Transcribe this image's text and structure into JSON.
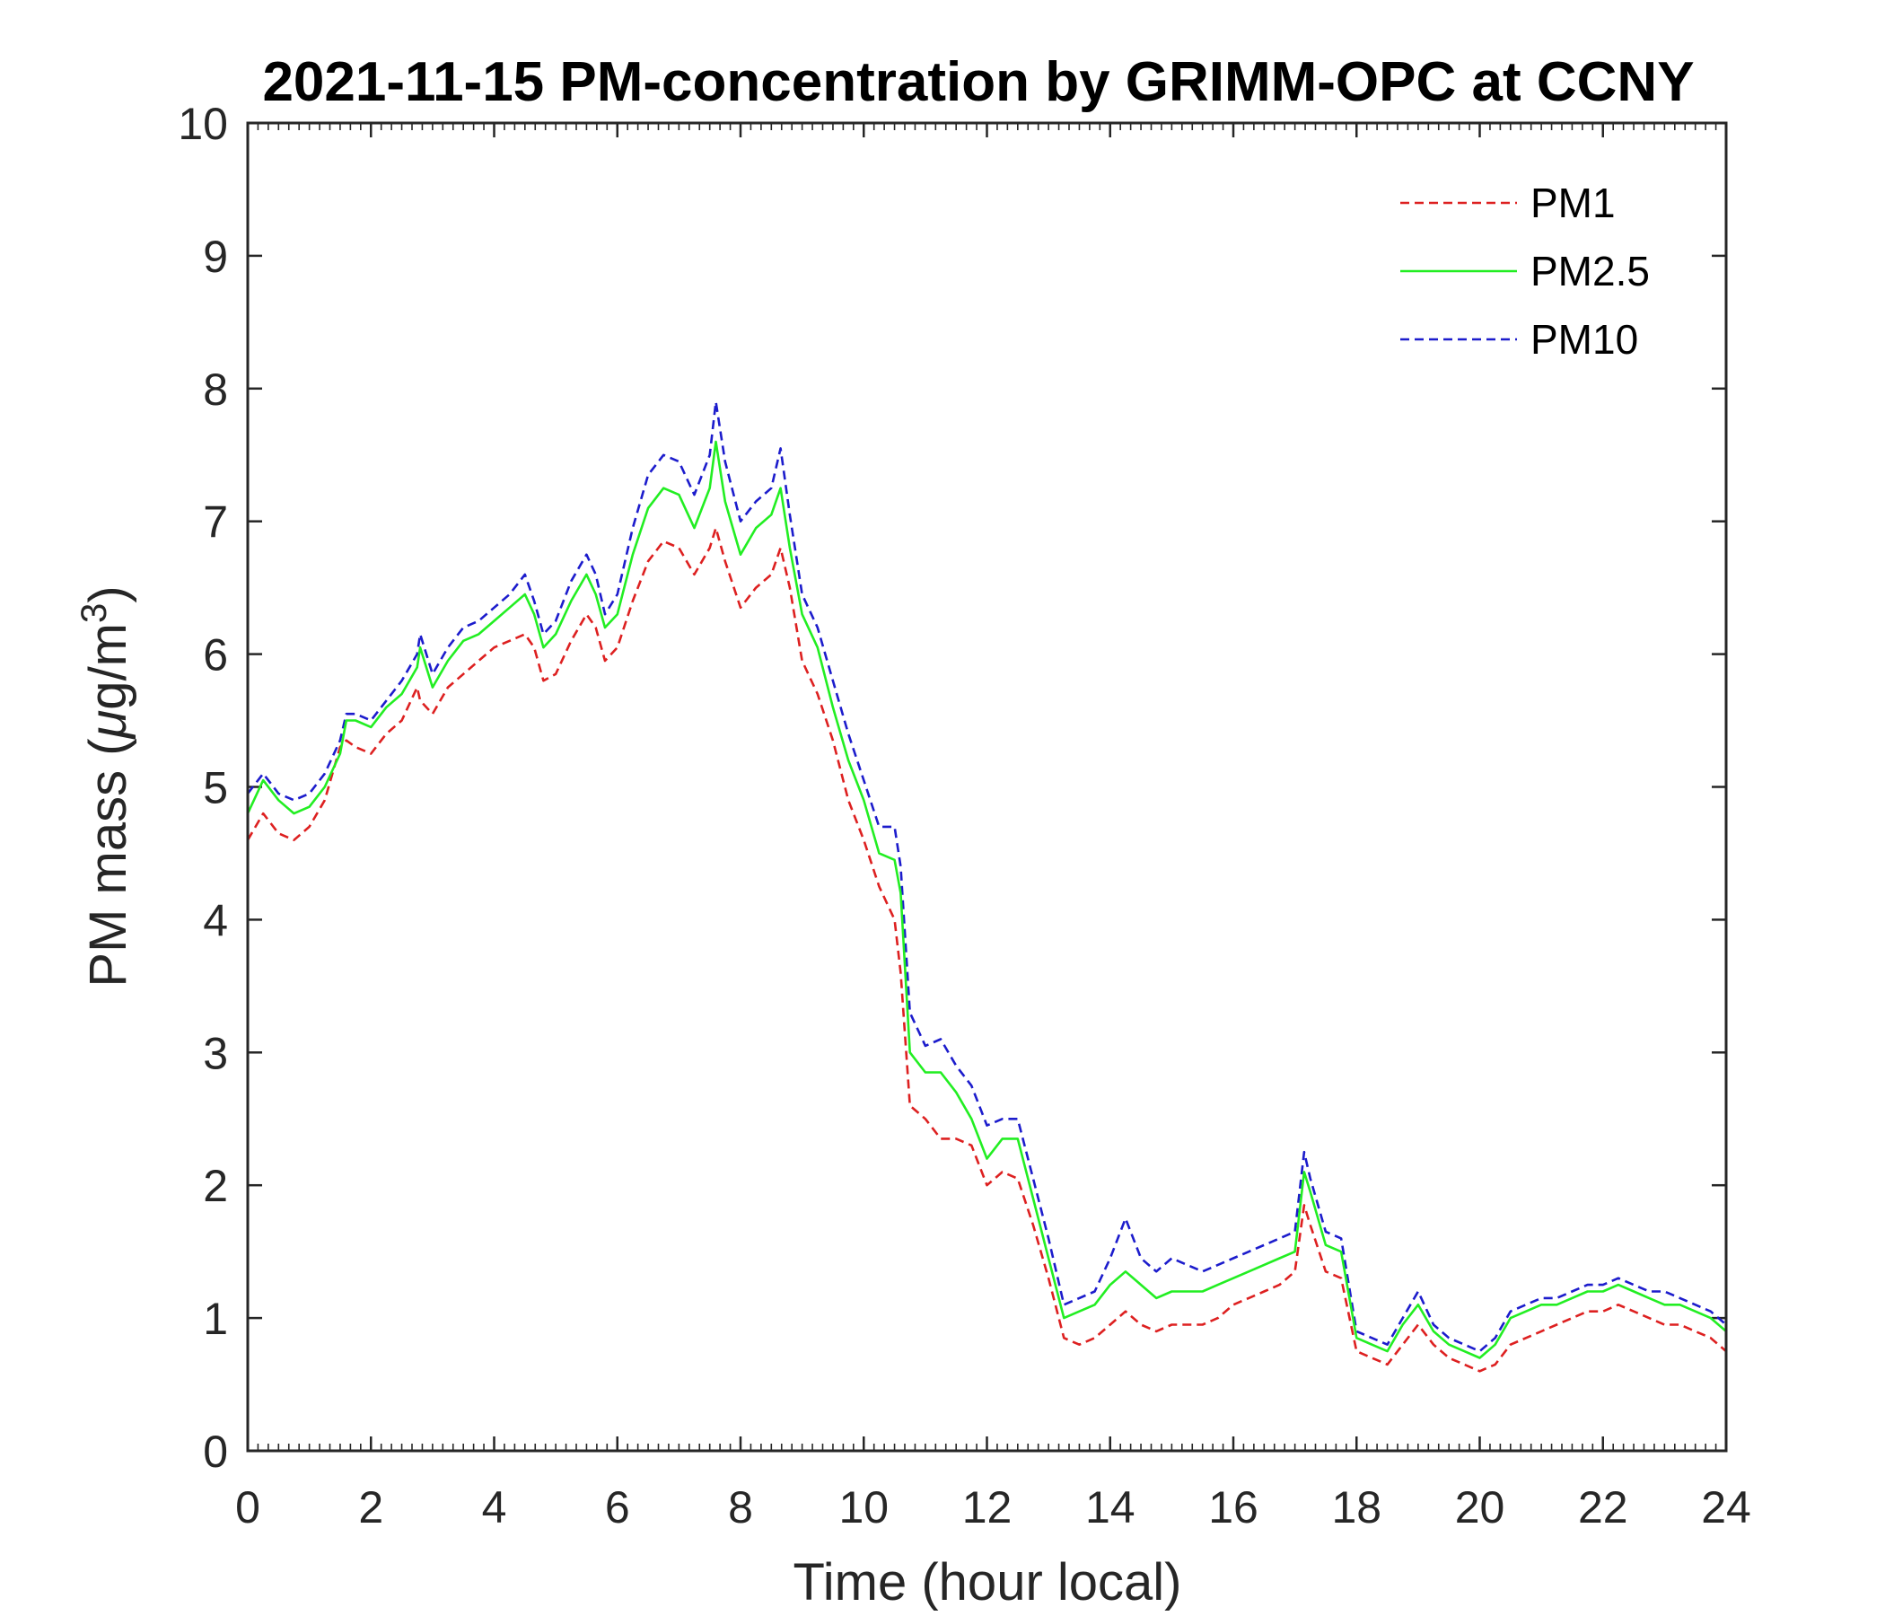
{
  "chart_data": {
    "type": "line",
    "title": "2021-11-15 PM-concentration by GRIMM-OPC at CCNY",
    "xlabel": "Time (hour local)",
    "ylabel": {
      "prefix": "PM mass (",
      "mu": "μ",
      "unit": "g/m",
      "superscript": "3",
      "suffix": ")"
    },
    "xlim": [
      0,
      24
    ],
    "ylim": [
      0,
      10
    ],
    "xticks": [
      0,
      2,
      4,
      6,
      8,
      10,
      12,
      14,
      16,
      18,
      20,
      22,
      24
    ],
    "yticks": [
      0,
      1,
      2,
      3,
      4,
      5,
      6,
      7,
      8,
      9,
      10
    ],
    "xticklabels": [
      "0",
      "2",
      "4",
      "6",
      "8",
      "10",
      "12",
      "14",
      "16",
      "18",
      "20",
      "22",
      "24"
    ],
    "yticklabels": [
      "0",
      "1",
      "2",
      "3",
      "4",
      "5",
      "6",
      "7",
      "8",
      "9",
      "10"
    ],
    "legend": {
      "position": "top-right",
      "entries": [
        "PM1",
        "PM2.5",
        "PM10"
      ]
    },
    "x": [
      0.0,
      0.25,
      0.5,
      0.75,
      1.0,
      1.25,
      1.5,
      1.6,
      1.75,
      2.0,
      2.25,
      2.5,
      2.75,
      2.8,
      3.0,
      3.25,
      3.5,
      3.75,
      4.0,
      4.25,
      4.5,
      4.65,
      4.8,
      5.0,
      5.25,
      5.5,
      5.65,
      5.8,
      6.0,
      6.25,
      6.5,
      6.75,
      7.0,
      7.25,
      7.5,
      7.6,
      7.75,
      8.0,
      8.25,
      8.5,
      8.65,
      8.8,
      9.0,
      9.25,
      9.5,
      9.75,
      10.0,
      10.25,
      10.5,
      10.6,
      10.75,
      11.0,
      11.25,
      11.5,
      11.75,
      12.0,
      12.25,
      12.5,
      12.75,
      13.0,
      13.25,
      13.5,
      13.75,
      14.0,
      14.25,
      14.5,
      14.75,
      15.0,
      15.25,
      15.5,
      15.75,
      16.0,
      16.25,
      16.5,
      16.75,
      17.0,
      17.15,
      17.25,
      17.5,
      17.75,
      18.0,
      18.25,
      18.5,
      18.75,
      19.0,
      19.25,
      19.5,
      19.75,
      20.0,
      20.25,
      20.5,
      20.75,
      21.0,
      21.25,
      21.5,
      21.75,
      22.0,
      22.25,
      22.5,
      22.75,
      23.0,
      23.25,
      23.5,
      23.75,
      24.0
    ],
    "series": [
      {
        "name": "PM1",
        "color": "#dd2020",
        "dash": "dashed",
        "values": [
          4.6,
          4.8,
          4.65,
          4.6,
          4.7,
          4.9,
          5.3,
          5.35,
          5.3,
          5.25,
          5.4,
          5.5,
          5.75,
          5.65,
          5.55,
          5.75,
          5.85,
          5.95,
          6.05,
          6.1,
          6.15,
          6.05,
          5.8,
          5.85,
          6.1,
          6.3,
          6.2,
          5.95,
          6.05,
          6.4,
          6.7,
          6.85,
          6.8,
          6.6,
          6.8,
          6.95,
          6.7,
          6.35,
          6.5,
          6.6,
          6.8,
          6.5,
          5.95,
          5.7,
          5.35,
          4.9,
          4.6,
          4.25,
          4.0,
          3.6,
          2.6,
          2.5,
          2.35,
          2.35,
          2.3,
          2.0,
          2.1,
          2.05,
          1.7,
          1.3,
          0.85,
          0.8,
          0.85,
          0.95,
          1.05,
          0.95,
          0.9,
          0.95,
          0.95,
          0.95,
          1.0,
          1.1,
          1.15,
          1.2,
          1.25,
          1.35,
          1.85,
          1.7,
          1.35,
          1.3,
          0.75,
          0.7,
          0.65,
          0.8,
          0.95,
          0.8,
          0.7,
          0.65,
          0.6,
          0.65,
          0.8,
          0.85,
          0.9,
          0.95,
          1.0,
          1.05,
          1.05,
          1.1,
          1.05,
          1.0,
          0.95,
          0.95,
          0.9,
          0.85,
          0.75
        ]
      },
      {
        "name": "PM2.5",
        "color": "#22ee22",
        "dash": "solid",
        "values": [
          4.8,
          5.05,
          4.9,
          4.8,
          4.85,
          5.0,
          5.25,
          5.5,
          5.5,
          5.45,
          5.6,
          5.7,
          5.9,
          6.05,
          5.75,
          5.95,
          6.1,
          6.15,
          6.25,
          6.35,
          6.45,
          6.3,
          6.05,
          6.15,
          6.4,
          6.6,
          6.45,
          6.2,
          6.3,
          6.75,
          7.1,
          7.25,
          7.2,
          6.95,
          7.25,
          7.6,
          7.15,
          6.75,
          6.95,
          7.05,
          7.25,
          6.8,
          6.3,
          6.05,
          5.6,
          5.2,
          4.9,
          4.5,
          4.45,
          4.2,
          3.0,
          2.85,
          2.85,
          2.7,
          2.5,
          2.2,
          2.35,
          2.35,
          1.9,
          1.45,
          1.0,
          1.05,
          1.1,
          1.25,
          1.35,
          1.25,
          1.15,
          1.2,
          1.2,
          1.2,
          1.25,
          1.3,
          1.35,
          1.4,
          1.45,
          1.5,
          2.1,
          1.95,
          1.55,
          1.5,
          0.85,
          0.8,
          0.75,
          0.95,
          1.1,
          0.9,
          0.8,
          0.75,
          0.7,
          0.8,
          1.0,
          1.05,
          1.1,
          1.1,
          1.15,
          1.2,
          1.2,
          1.25,
          1.2,
          1.15,
          1.1,
          1.1,
          1.05,
          1.0,
          0.9
        ]
      },
      {
        "name": "PM10",
        "color": "#1c1ccc",
        "dash": "dashed",
        "values": [
          4.95,
          5.1,
          4.95,
          4.9,
          4.95,
          5.1,
          5.35,
          5.55,
          5.55,
          5.5,
          5.65,
          5.8,
          6.0,
          6.15,
          5.85,
          6.05,
          6.2,
          6.25,
          6.35,
          6.45,
          6.6,
          6.4,
          6.15,
          6.25,
          6.55,
          6.75,
          6.6,
          6.3,
          6.45,
          6.95,
          7.35,
          7.5,
          7.45,
          7.2,
          7.5,
          7.9,
          7.45,
          7.0,
          7.15,
          7.25,
          7.55,
          7.05,
          6.45,
          6.2,
          5.8,
          5.4,
          5.05,
          4.7,
          4.7,
          4.4,
          3.3,
          3.05,
          3.1,
          2.9,
          2.75,
          2.45,
          2.5,
          2.5,
          2.05,
          1.6,
          1.1,
          1.15,
          1.2,
          1.45,
          1.75,
          1.45,
          1.35,
          1.45,
          1.4,
          1.35,
          1.4,
          1.45,
          1.5,
          1.55,
          1.6,
          1.65,
          2.25,
          2.05,
          1.65,
          1.6,
          0.9,
          0.85,
          0.8,
          1.0,
          1.2,
          0.95,
          0.85,
          0.8,
          0.75,
          0.85,
          1.05,
          1.1,
          1.15,
          1.15,
          1.2,
          1.25,
          1.25,
          1.3,
          1.25,
          1.2,
          1.2,
          1.15,
          1.1,
          1.05,
          0.95
        ]
      }
    ]
  }
}
